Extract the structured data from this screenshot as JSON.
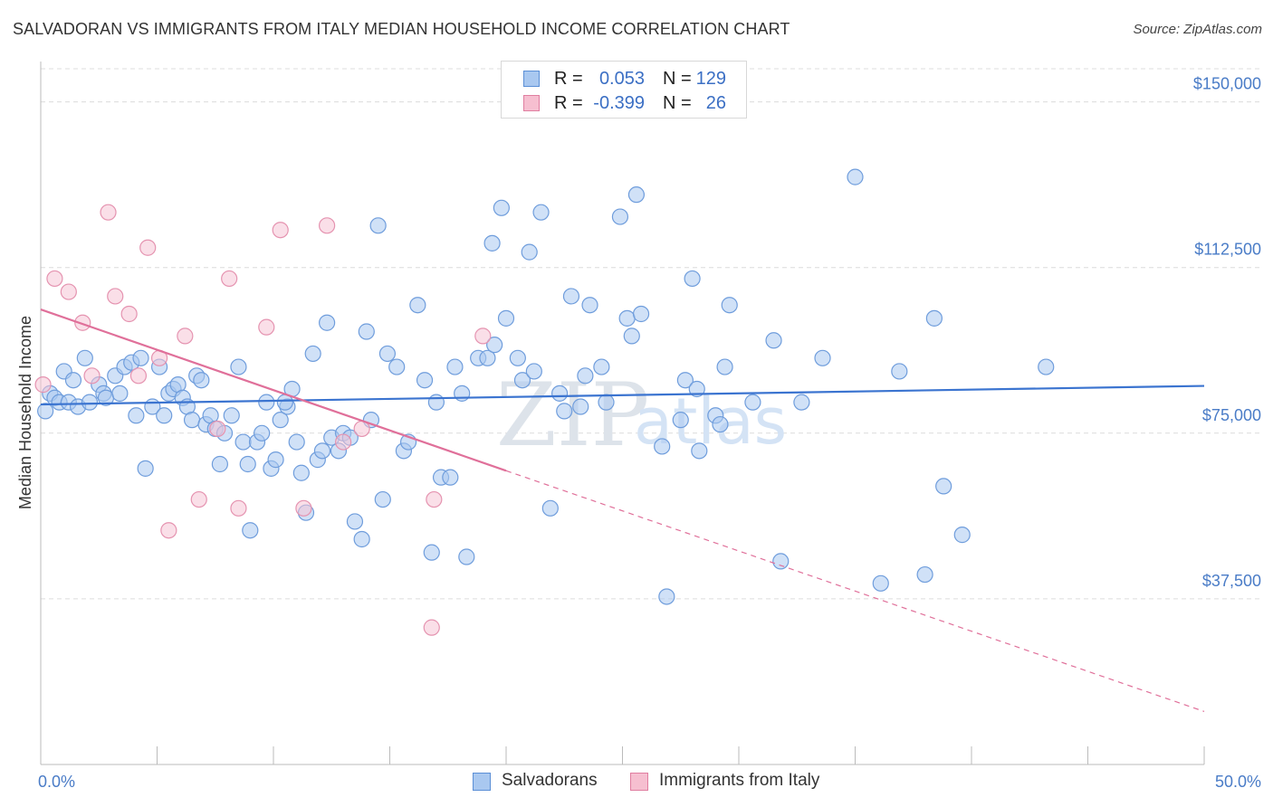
{
  "header": {
    "title": "SALVADORAN VS IMMIGRANTS FROM ITALY MEDIAN HOUSEHOLD INCOME CORRELATION CHART",
    "source": "Source: ZipAtlas.com"
  },
  "legend": {
    "r_label": "R =",
    "n_label": "N =",
    "rows": [
      {
        "name": "Salvadorans",
        "r": "0.053",
        "n": "129",
        "fill": "#a9c8f0",
        "stroke": "#5b8fd6"
      },
      {
        "name": "Immigrants from Italy",
        "r": "-0.399",
        "n": "26",
        "fill": "#f6bfd0",
        "stroke": "#e07ea0"
      }
    ]
  },
  "watermark": {
    "zip": "ZIP",
    "atlas": "atlas"
  },
  "colors": {
    "blue": "#3b74d0",
    "pink": "#e0709a",
    "blue_point": "#a9c8f0",
    "pink_point": "#f6c5d5",
    "axis_text": "#4a7cc7"
  },
  "chart_data": {
    "type": "scatter",
    "title": "SALVADORAN VS IMMIGRANTS FROM ITALY MEDIAN HOUSEHOLD INCOME CORRELATION CHART",
    "xlabel": "",
    "ylabel": "Median Household Income",
    "xlim": [
      0,
      50
    ],
    "ylim": [
      0,
      157500
    ],
    "x_tick_labels": [
      {
        "x": 0,
        "label": "0.0%"
      },
      {
        "x": 50,
        "label": "50.0%"
      }
    ],
    "y_ticks": [
      {
        "y": 37500,
        "label": "$37,500"
      },
      {
        "y": 75000,
        "label": "$75,000"
      },
      {
        "y": 112500,
        "label": "$112,500"
      },
      {
        "y": 150000,
        "label": "$150,000"
      }
    ],
    "series": [
      {
        "name": "Salvadorans",
        "color": "#3b74d0",
        "trend": {
          "x": [
            0,
            50
          ],
          "y": [
            81500,
            85700
          ]
        },
        "points": [
          [
            0.2,
            80000
          ],
          [
            0.4,
            84000
          ],
          [
            0.6,
            83000
          ],
          [
            0.8,
            82000
          ],
          [
            1.0,
            89000
          ],
          [
            1.2,
            82000
          ],
          [
            1.4,
            87000
          ],
          [
            1.6,
            81000
          ],
          [
            1.9,
            92000
          ],
          [
            2.1,
            82000
          ],
          [
            2.5,
            86000
          ],
          [
            2.7,
            84000
          ],
          [
            2.8,
            83000
          ],
          [
            3.2,
            88000
          ],
          [
            3.4,
            84000
          ],
          [
            3.6,
            90000
          ],
          [
            3.9,
            91000
          ],
          [
            4.1,
            79000
          ],
          [
            4.3,
            92000
          ],
          [
            4.5,
            67000
          ],
          [
            4.8,
            81000
          ],
          [
            5.1,
            90000
          ],
          [
            5.3,
            79000
          ],
          [
            5.5,
            84000
          ],
          [
            5.7,
            85000
          ],
          [
            5.9,
            86000
          ],
          [
            6.1,
            83000
          ],
          [
            6.3,
            81000
          ],
          [
            6.5,
            78000
          ],
          [
            6.7,
            88000
          ],
          [
            6.9,
            87000
          ],
          [
            7.1,
            77000
          ],
          [
            7.3,
            79000
          ],
          [
            7.5,
            76000
          ],
          [
            7.7,
            68000
          ],
          [
            7.9,
            75000
          ],
          [
            8.2,
            79000
          ],
          [
            8.5,
            90000
          ],
          [
            8.7,
            73000
          ],
          [
            8.9,
            68000
          ],
          [
            9.0,
            53000
          ],
          [
            9.3,
            73000
          ],
          [
            9.5,
            75000
          ],
          [
            9.7,
            82000
          ],
          [
            9.9,
            67000
          ],
          [
            10.1,
            69000
          ],
          [
            10.3,
            78000
          ],
          [
            10.6,
            81000
          ],
          [
            10.8,
            85000
          ],
          [
            11.0,
            73000
          ],
          [
            11.2,
            66000
          ],
          [
            11.4,
            57000
          ],
          [
            11.7,
            93000
          ],
          [
            11.9,
            69000
          ],
          [
            12.1,
            71000
          ],
          [
            12.3,
            100000
          ],
          [
            12.5,
            74000
          ],
          [
            12.8,
            71000
          ],
          [
            13.0,
            75000
          ],
          [
            13.3,
            74000
          ],
          [
            13.5,
            55000
          ],
          [
            13.8,
            51000
          ],
          [
            14.0,
            98000
          ],
          [
            14.2,
            78000
          ],
          [
            14.5,
            122000
          ],
          [
            14.7,
            60000
          ],
          [
            14.9,
            93000
          ],
          [
            15.3,
            90000
          ],
          [
            15.6,
            71000
          ],
          [
            15.8,
            73000
          ],
          [
            16.2,
            104000
          ],
          [
            16.5,
            87000
          ],
          [
            16.8,
            48000
          ],
          [
            17.0,
            82000
          ],
          [
            17.2,
            65000
          ],
          [
            17.6,
            65000
          ],
          [
            17.8,
            90000
          ],
          [
            18.1,
            84000
          ],
          [
            18.3,
            47000
          ],
          [
            18.8,
            92000
          ],
          [
            19.2,
            92000
          ],
          [
            19.5,
            95000
          ],
          [
            19.8,
            126000
          ],
          [
            20.0,
            101000
          ],
          [
            20.5,
            92000
          ],
          [
            20.7,
            87000
          ],
          [
            21.0,
            116000
          ],
          [
            21.2,
            89000
          ],
          [
            21.5,
            125000
          ],
          [
            21.9,
            58000
          ],
          [
            22.3,
            84000
          ],
          [
            22.5,
            80000
          ],
          [
            22.8,
            106000
          ],
          [
            23.2,
            81000
          ],
          [
            23.4,
            88000
          ],
          [
            23.6,
            104000
          ],
          [
            24.1,
            90000
          ],
          [
            24.3,
            82000
          ],
          [
            24.9,
            124000
          ],
          [
            25.2,
            101000
          ],
          [
            25.4,
            97000
          ],
          [
            25.6,
            129000
          ],
          [
            25.8,
            102000
          ],
          [
            26.7,
            72000
          ],
          [
            26.9,
            38000
          ],
          [
            27.5,
            78000
          ],
          [
            27.7,
            87000
          ],
          [
            28.0,
            110000
          ],
          [
            28.2,
            85000
          ],
          [
            28.3,
            71000
          ],
          [
            29.0,
            79000
          ],
          [
            29.2,
            77000
          ],
          [
            29.4,
            90000
          ],
          [
            29.6,
            104000
          ],
          [
            30.6,
            82000
          ],
          [
            31.5,
            96000
          ],
          [
            31.8,
            46000
          ],
          [
            32.7,
            82000
          ],
          [
            33.6,
            92000
          ],
          [
            35.0,
            133000
          ],
          [
            36.1,
            41000
          ],
          [
            36.9,
            89000
          ],
          [
            38.0,
            43000
          ],
          [
            38.4,
            101000
          ],
          [
            38.8,
            63000
          ],
          [
            39.6,
            52000
          ],
          [
            43.2,
            90000
          ],
          [
            19.4,
            118000
          ],
          [
            10.5,
            82000
          ]
        ]
      },
      {
        "name": "Immigrants from Italy",
        "color": "#e0709a",
        "trend": {
          "x": [
            0,
            20
          ],
          "y": [
            103000,
            66500
          ]
        },
        "trend_dashed": {
          "x": [
            20,
            50
          ],
          "y": [
            66500,
            12000
          ]
        },
        "points": [
          [
            0.1,
            86000
          ],
          [
            0.6,
            110000
          ],
          [
            1.2,
            107000
          ],
          [
            1.8,
            100000
          ],
          [
            2.2,
            88000
          ],
          [
            2.9,
            125000
          ],
          [
            3.2,
            106000
          ],
          [
            3.8,
            102000
          ],
          [
            4.2,
            88000
          ],
          [
            4.6,
            117000
          ],
          [
            5.1,
            92000
          ],
          [
            5.5,
            53000
          ],
          [
            6.2,
            97000
          ],
          [
            6.8,
            60000
          ],
          [
            7.6,
            76000
          ],
          [
            8.1,
            110000
          ],
          [
            8.5,
            58000
          ],
          [
            9.7,
            99000
          ],
          [
            10.3,
            121000
          ],
          [
            11.3,
            58000
          ],
          [
            12.3,
            122000
          ],
          [
            13.0,
            73000
          ],
          [
            13.8,
            76000
          ],
          [
            16.8,
            31000
          ],
          [
            16.9,
            60000
          ],
          [
            19.0,
            97000
          ]
        ]
      }
    ]
  }
}
